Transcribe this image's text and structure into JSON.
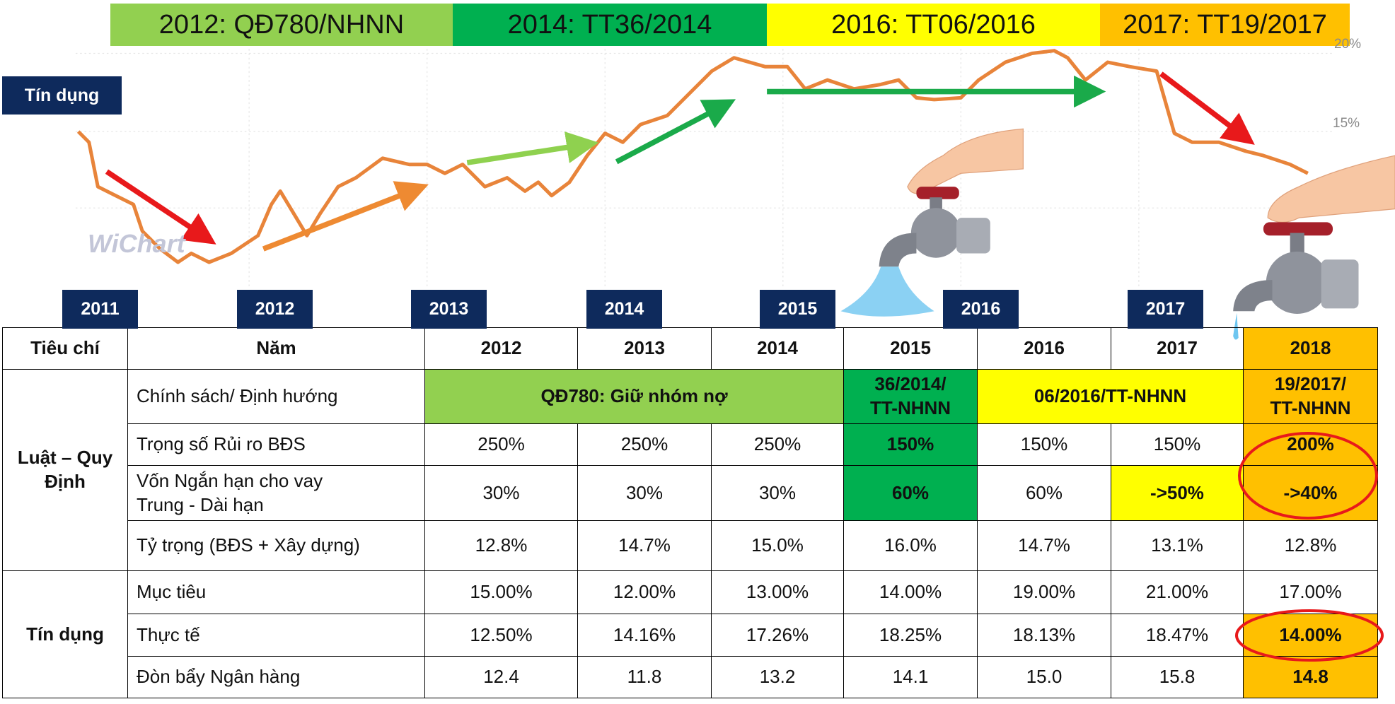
{
  "banners": [
    "2012: QĐ780/NHNN",
    "2014: TT36/2014",
    "2016: TT06/2016",
    "2017: TT19/2017"
  ],
  "chart_label": "Tín dụng",
  "axis_labels": [
    "20%",
    "15%"
  ],
  "watermark": "WiChart",
  "years": [
    "2011",
    "2012",
    "2013",
    "2014",
    "2015",
    "2016",
    "2017"
  ],
  "table": {
    "header": [
      "Tiêu chí",
      "Năm",
      "2012",
      "2013",
      "2014",
      "2015",
      "2016",
      "2017",
      "2018"
    ],
    "groups": [
      "Luật – Quy\nĐịnh",
      "Tín dụng"
    ],
    "rows": [
      [
        "Chính sách/ Định hướng",
        "QĐ780: Giữ nhóm nợ",
        "36/2014/\nTT-NHNN",
        "06/2016/TT-NHNN",
        "19/2017/\nTT-NHNN"
      ],
      [
        "Trọng số Rủi ro BĐS",
        "250%",
        "250%",
        "250%",
        "150%",
        "150%",
        "150%",
        "200%"
      ],
      [
        "Vốn Ngắn hạn cho vay\nTrung - Dài hạn",
        "30%",
        "30%",
        "30%",
        "60%",
        "60%",
        "->50%",
        "->40%"
      ],
      [
        "Tỷ trọng (BĐS + Xây dựng)",
        "12.8%",
        "14.7%",
        "15.0%",
        "16.0%",
        "14.7%",
        "13.1%",
        "12.8%"
      ],
      [
        "Mục tiêu",
        "15.00%",
        "12.00%",
        "13.00%",
        "14.00%",
        "19.00%",
        "21.00%",
        "17.00%"
      ],
      [
        "Thực tế",
        "12.50%",
        "14.16%",
        "17.26%",
        "18.25%",
        "18.13%",
        "18.47%",
        "14.00%"
      ],
      [
        "Đòn bẩy Ngân hàng",
        "12.4",
        "11.8",
        "13.2",
        "14.1",
        "15.0",
        "15.8",
        "14.8"
      ]
    ]
  }
}
